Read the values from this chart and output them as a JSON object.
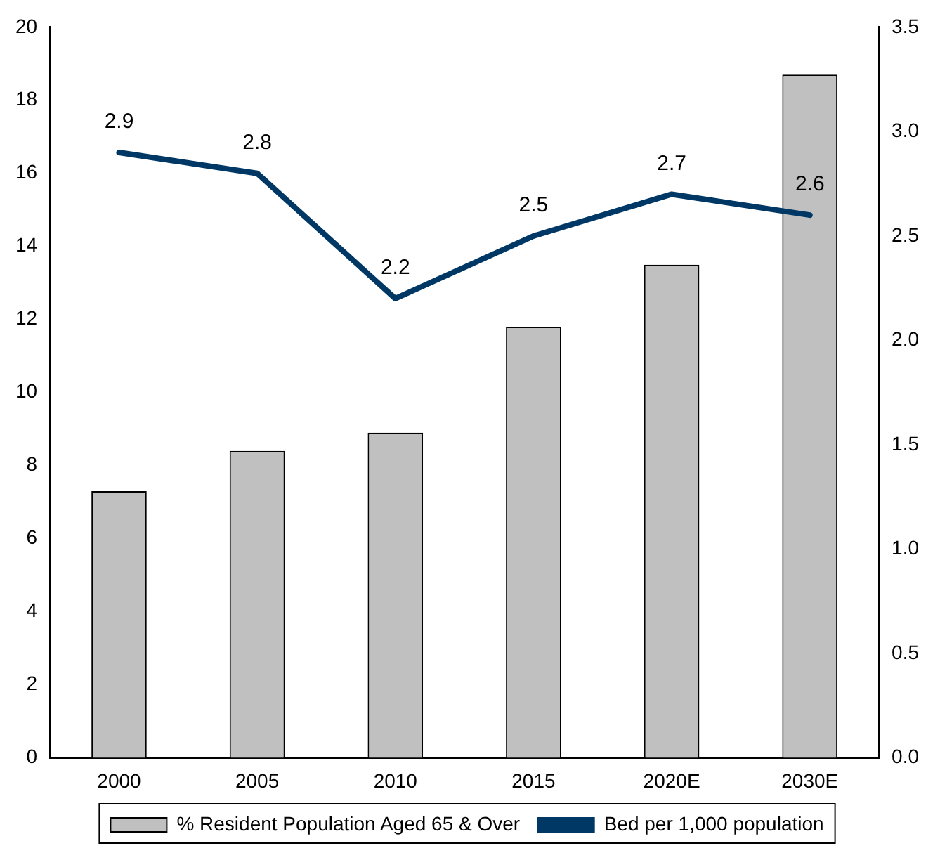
{
  "chart_data": {
    "type": "bar",
    "categories": [
      "2000",
      "2005",
      "2010",
      "2015",
      "2020E",
      "2030E"
    ],
    "series": [
      {
        "name": "% Resident Population Aged 65 & Over",
        "color": "#c0c0c0",
        "values": [
          7.3,
          8.4,
          8.9,
          11.8,
          13.5,
          18.7
        ]
      },
      {
        "name": "Bed per 1,000 population",
        "type": "line",
        "axis": "y2",
        "color": "#003865",
        "values": [
          2.9,
          2.8,
          2.2,
          2.5,
          2.7,
          2.6
        ],
        "data_labels": true
      }
    ],
    "ylim": [
      0,
      20
    ],
    "yticks": [
      0,
      2,
      4,
      6,
      8,
      10,
      12,
      14,
      16,
      18,
      20
    ],
    "y2lim": [
      0,
      3.5
    ],
    "y2ticks": [
      {
        "value": 0,
        "label": "0.0"
      },
      {
        "value": 0.5,
        "label": "0.5"
      },
      {
        "value": 1,
        "label": "1.0"
      },
      {
        "value": 1.5,
        "label": "1.5"
      },
      {
        "value": 2,
        "label": "2.0"
      },
      {
        "value": 2.5,
        "label": "2.5"
      },
      {
        "value": 3,
        "label": "3.0"
      },
      {
        "value": 3.5,
        "label": "3.5"
      }
    ],
    "grid": false,
    "legend": "bottom",
    "marker": "none",
    "line_style": "solid"
  }
}
